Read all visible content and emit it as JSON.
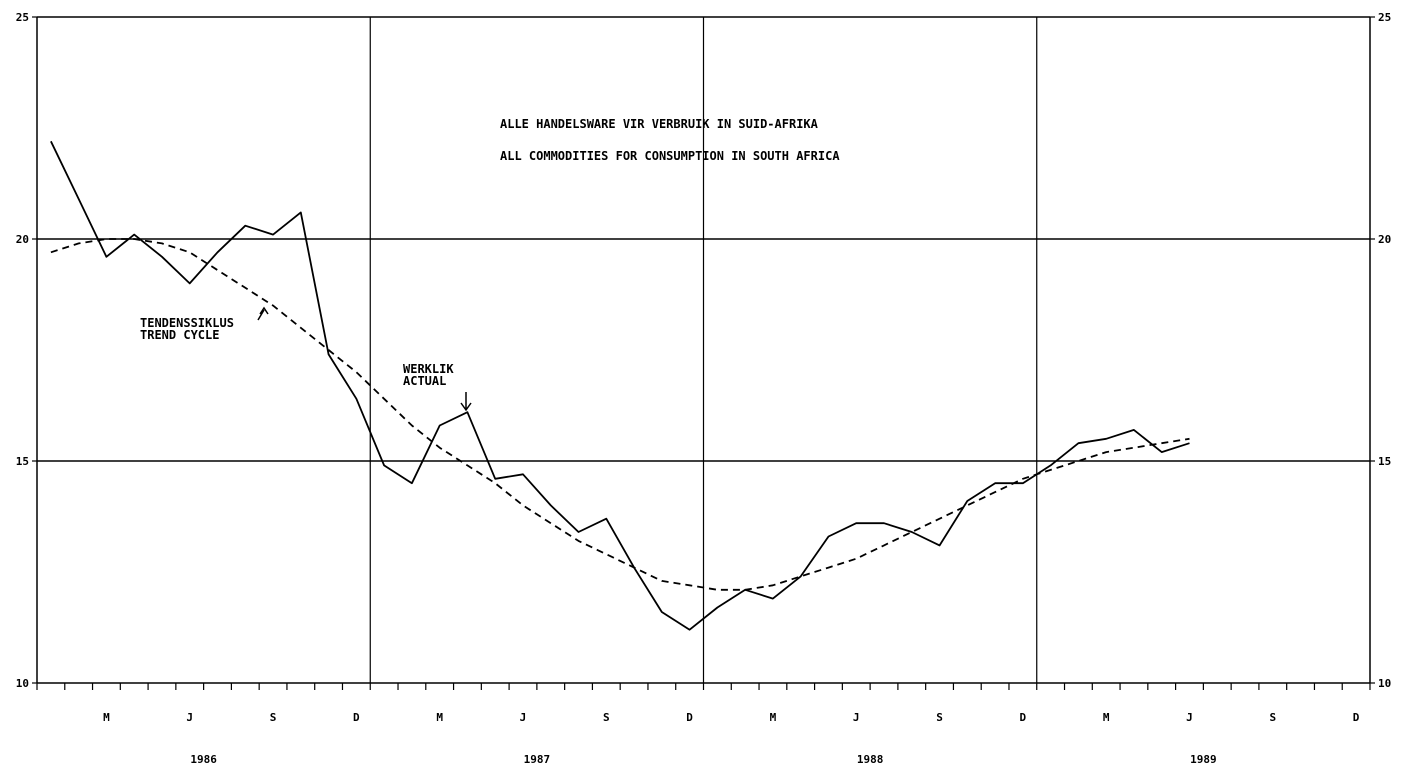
{
  "chart_data": {
    "type": "line",
    "title_lines": [
      "ALLE HANDELSWARE VIR VERBRUIK IN SUID-AFRIKA",
      "ALL COMMODITIES FOR CONSUMPTION IN SOUTH AFRICA"
    ],
    "ylim": [
      10,
      25
    ],
    "yticks_left": [
      "10",
      "15",
      "20",
      "25"
    ],
    "yticks_right": [
      "10",
      "15",
      "20",
      "25"
    ],
    "month_labels": [
      "M",
      "J",
      "S",
      "D",
      "M",
      "J",
      "S",
      "D",
      "M",
      "J",
      "S",
      "D",
      "M",
      "J",
      "S",
      "D"
    ],
    "year_labels": [
      "1986",
      "1987",
      "1988",
      "1989"
    ],
    "x_start_month": 1,
    "x_months": 48,
    "annotations": [
      {
        "lines": [
          "TENDENSSIKLUS",
          "TREND CYCLE"
        ],
        "series": "trend"
      },
      {
        "lines": [
          "WERKLIK",
          "ACTUAL"
        ],
        "series": "actual"
      }
    ],
    "series": [
      {
        "name": "WERKLIK / ACTUAL",
        "style": "solid",
        "x": [
          1,
          2,
          3,
          4,
          5,
          6,
          7,
          8,
          9,
          10,
          11,
          12,
          13,
          14,
          15,
          16,
          17,
          18,
          19,
          20,
          21,
          22,
          23,
          24,
          25,
          26,
          27,
          28,
          29,
          30,
          31,
          32,
          33,
          34,
          35,
          36,
          37,
          38,
          39,
          40,
          41,
          42
        ],
        "values": [
          22.2,
          20.9,
          19.6,
          20.1,
          19.6,
          19.0,
          19.7,
          20.3,
          20.1,
          20.6,
          17.4,
          16.4,
          14.9,
          14.5,
          15.8,
          16.1,
          14.6,
          14.7,
          14.0,
          13.4,
          13.7,
          12.6,
          11.6,
          11.2,
          11.7,
          12.1,
          11.9,
          12.4,
          13.3,
          13.6,
          13.6,
          13.4,
          13.1,
          14.1,
          14.5,
          14.5,
          14.9,
          15.4,
          15.5,
          15.7,
          15.2,
          15.4
        ]
      },
      {
        "name": "TENDENSSIKLUS / TREND CYCLE",
        "style": "dashed",
        "x": [
          1,
          2,
          3,
          4,
          5,
          6,
          7,
          8,
          9,
          10,
          11,
          12,
          13,
          14,
          15,
          16,
          17,
          18,
          19,
          20,
          21,
          22,
          23,
          24,
          25,
          26,
          27,
          28,
          29,
          30,
          31,
          32,
          33,
          34,
          35,
          36,
          37,
          38,
          39,
          40,
          41,
          42
        ],
        "values": [
          19.7,
          19.9,
          20.0,
          20.0,
          19.9,
          19.7,
          19.3,
          18.9,
          18.5,
          18.0,
          17.5,
          17.0,
          16.4,
          15.8,
          15.3,
          14.9,
          14.5,
          14.0,
          13.6,
          13.2,
          12.9,
          12.6,
          12.3,
          12.2,
          12.1,
          12.1,
          12.2,
          12.4,
          12.6,
          12.8,
          13.1,
          13.4,
          13.7,
          14.0,
          14.3,
          14.6,
          14.8,
          15.0,
          15.2,
          15.3,
          15.4,
          15.5
        ]
      }
    ]
  }
}
